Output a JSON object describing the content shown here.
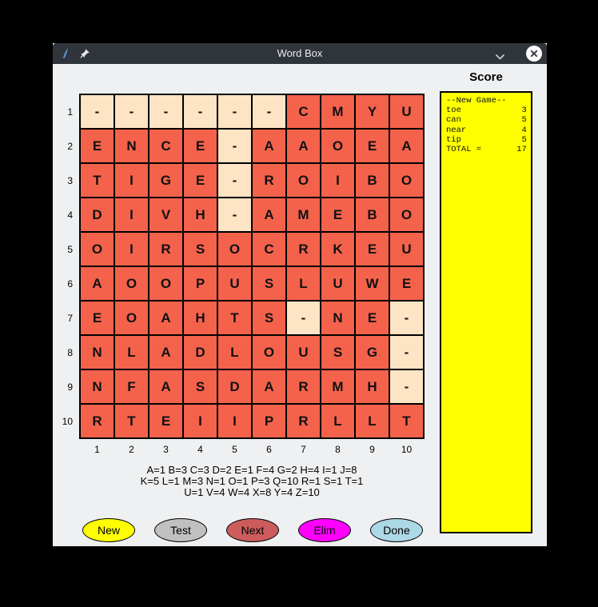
{
  "window": {
    "title": "Word Box"
  },
  "titlebar": {
    "icons": {
      "app": "python-feather",
      "pin": "pushpin",
      "shade": "chevron-down",
      "close": "close-x"
    }
  },
  "score_panel": {
    "heading": "Score",
    "bg_color": "#ffff00",
    "lines": [
      "--New Game--",
      "toe            3",
      "can            5",
      "near           4",
      "tip            5",
      "TOTAL =       17"
    ]
  },
  "grid": {
    "row_labels": [
      "1",
      "2",
      "3",
      "4",
      "5",
      "6",
      "7",
      "8",
      "9",
      "10"
    ],
    "col_labels": [
      "1",
      "2",
      "3",
      "4",
      "5",
      "6",
      "7",
      "8",
      "9",
      "10"
    ],
    "rows": [
      [
        "-",
        "-",
        "-",
        "-",
        "-",
        "-",
        "C",
        "M",
        "Y",
        "U"
      ],
      [
        "E",
        "N",
        "C",
        "E",
        "-",
        "A",
        "A",
        "O",
        "E",
        "A"
      ],
      [
        "T",
        "I",
        "G",
        "E",
        "-",
        "R",
        "O",
        "I",
        "B",
        "O"
      ],
      [
        "D",
        "I",
        "V",
        "H",
        "-",
        "A",
        "M",
        "E",
        "B",
        "O"
      ],
      [
        "O",
        "I",
        "R",
        "S",
        "O",
        "C",
        "R",
        "K",
        "E",
        "U"
      ],
      [
        "A",
        "O",
        "O",
        "P",
        "U",
        "S",
        "L",
        "U",
        "W",
        "E"
      ],
      [
        "E",
        "O",
        "A",
        "H",
        "T",
        "S",
        "-",
        "N",
        "E",
        "-"
      ],
      [
        "N",
        "L",
        "A",
        "D",
        "L",
        "O",
        "U",
        "S",
        "G",
        "-"
      ],
      [
        "N",
        "F",
        "A",
        "S",
        "D",
        "A",
        "R",
        "M",
        "H",
        "-"
      ],
      [
        "R",
        "T",
        "E",
        "I",
        "I",
        "P",
        "R",
        "L",
        "L",
        "T"
      ]
    ],
    "colors": {
      "letter_bg": "#f4624b",
      "blank_bg": "#fce4c4",
      "grid_line": "#000000"
    }
  },
  "legend": {
    "lines": [
      "A=1 B=3 C=3 D=2 E=1 F=4 G=2 H=4 I=1 J=8",
      "K=5 L=1 M=3 N=1 O=1 P=3 Q=10 R=1 S=1 T=1",
      "U=1 V=4 W=4 X=8 Y=4 Z=10"
    ]
  },
  "buttons": [
    {
      "name": "new",
      "label": "New",
      "color": "#ffff00"
    },
    {
      "name": "test",
      "label": "Test",
      "color": "#c0c0c0"
    },
    {
      "name": "next",
      "label": "Next",
      "color": "#cd5c5c"
    },
    {
      "name": "elim",
      "label": "Elim",
      "color": "#ff00ff"
    },
    {
      "name": "done",
      "label": "Done",
      "color": "#add8e6"
    }
  ]
}
